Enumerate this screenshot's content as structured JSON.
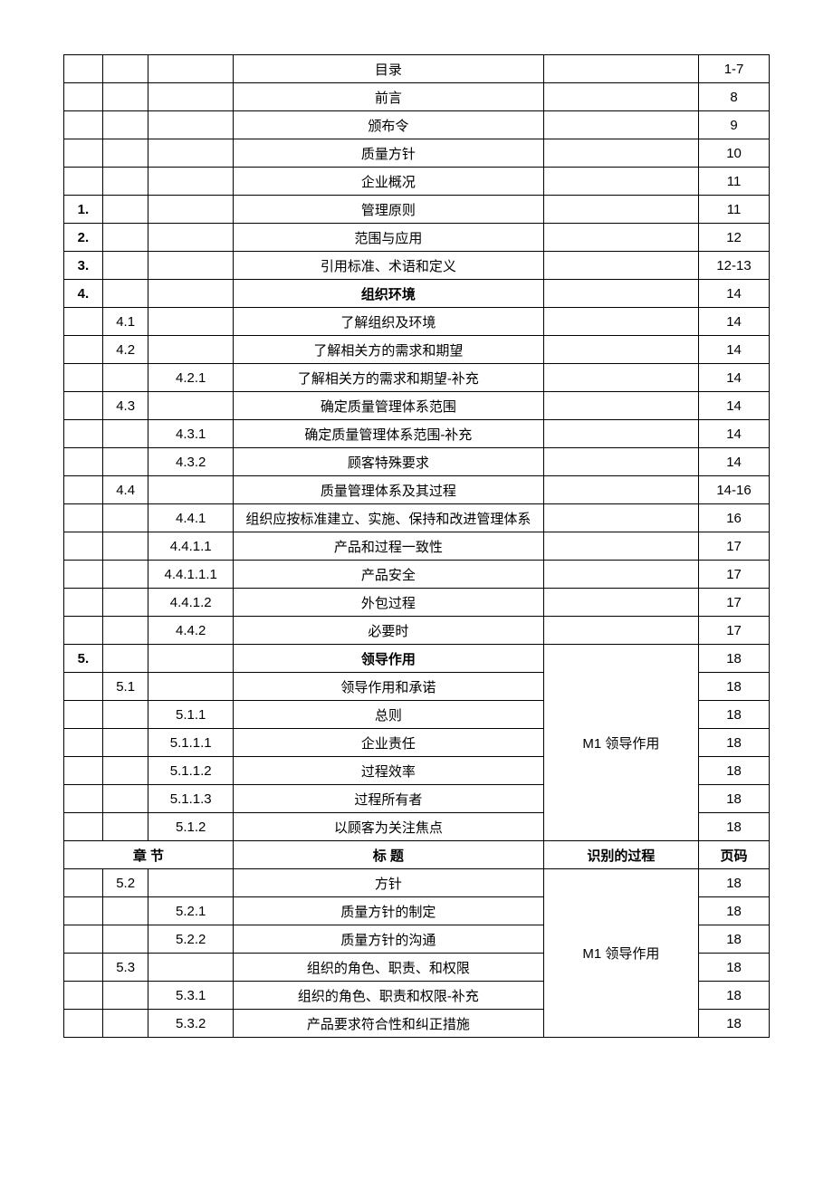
{
  "rows": [
    {
      "c1": "",
      "c2": "",
      "c3": "",
      "c4": "目录",
      "c5": "",
      "c6": "1-7",
      "bold4": false
    },
    {
      "c1": "",
      "c2": "",
      "c3": "",
      "c4": "前言",
      "c5": "",
      "c6": "8",
      "bold4": false
    },
    {
      "c1": "",
      "c2": "",
      "c3": "",
      "c4": "颁布令",
      "c5": "",
      "c6": "9",
      "bold4": false
    },
    {
      "c1": "",
      "c2": "",
      "c3": "",
      "c4": "质量方针",
      "c5": "",
      "c6": "10",
      "bold4": false
    },
    {
      "c1": "",
      "c2": "",
      "c3": "",
      "c4": "企业概况",
      "c5": "",
      "c6": "11",
      "bold4": false
    },
    {
      "c1": "1.",
      "c2": "",
      "c3": "",
      "c4": "管理原则",
      "c5": "",
      "c6": "11",
      "bold4": false
    },
    {
      "c1": "2.",
      "c2": "",
      "c3": "",
      "c4": "范围与应用",
      "c5": "",
      "c6": "12",
      "bold4": false
    },
    {
      "c1": "3.",
      "c2": "",
      "c3": "",
      "c4": "引用标准、术语和定义",
      "c5": "",
      "c6": "12-13",
      "bold4": false
    },
    {
      "c1": "4.",
      "c2": "",
      "c3": "",
      "c4": "组织环境",
      "c5": "",
      "c6": "14",
      "bold4": true
    },
    {
      "c1": "",
      "c2": "4.1",
      "c3": "",
      "c4": "了解组织及环境",
      "c5": "",
      "c6": "14",
      "bold4": false
    },
    {
      "c1": "",
      "c2": "4.2",
      "c3": "",
      "c4": "了解相关方的需求和期望",
      "c5": "",
      "c6": "14",
      "bold4": false
    },
    {
      "c1": "",
      "c2": "",
      "c3": "4.2.1",
      "c4": "了解相关方的需求和期望-补充",
      "c5": "",
      "c6": "14",
      "bold4": false
    },
    {
      "c1": "",
      "c2": "4.3",
      "c3": "",
      "c4": "确定质量管理体系范围",
      "c5": "",
      "c6": "14",
      "bold4": false
    },
    {
      "c1": "",
      "c2": "",
      "c3": "4.3.1",
      "c4": "确定质量管理体系范围-补充",
      "c5": "",
      "c6": "14",
      "bold4": false
    },
    {
      "c1": "",
      "c2": "",
      "c3": "4.3.2",
      "c4": "顾客特殊要求",
      "c5": "",
      "c6": "14",
      "bold4": false
    },
    {
      "c1": "",
      "c2": "4.4",
      "c3": "",
      "c4": "质量管理体系及其过程",
      "c5": "",
      "c6": "14-16",
      "bold4": false
    },
    {
      "c1": "",
      "c2": "",
      "c3": "4.4.1",
      "c4": "组织应按标准建立、实施、保持和改进管理体系",
      "c5": "",
      "c6": "16",
      "bold4": false
    },
    {
      "c1": "",
      "c2": "",
      "c3": "4.4.1.1",
      "c4": "产品和过程一致性",
      "c5": "",
      "c6": "17",
      "bold4": false
    },
    {
      "c1": "",
      "c2": "",
      "c3": "4.4.1.1.1",
      "c4": "产品安全",
      "c5": "",
      "c6": "17",
      "bold4": false
    },
    {
      "c1": "",
      "c2": "",
      "c3": "4.4.1.2",
      "c4": "外包过程",
      "c5": "",
      "c6": "17",
      "bold4": false
    },
    {
      "c1": "",
      "c2": "",
      "c3": "4.4.2",
      "c4": "必要时",
      "c5": "",
      "c6": "17",
      "bold4": false
    }
  ],
  "group1": {
    "label": "M1 领导作用",
    "rows": [
      {
        "c1": "5.",
        "c2": "",
        "c3": "",
        "c4": "领导作用",
        "c6": "18",
        "bold4": true
      },
      {
        "c1": "",
        "c2": "5.1",
        "c3": "",
        "c4": "领导作用和承诺",
        "c6": "18",
        "bold4": false
      },
      {
        "c1": "",
        "c2": "",
        "c3": "5.1.1",
        "c4": "总则",
        "c6": "18",
        "bold4": false
      },
      {
        "c1": "",
        "c2": "",
        "c3": "5.1.1.1",
        "c4": "企业责任",
        "c6": "18",
        "bold4": false
      },
      {
        "c1": "",
        "c2": "",
        "c3": "5.1.1.2",
        "c4": "过程效率",
        "c6": "18",
        "bold4": false
      },
      {
        "c1": "",
        "c2": "",
        "c3": "5.1.1.3",
        "c4": "过程所有者",
        "c6": "18",
        "bold4": false
      },
      {
        "c1": "",
        "c2": "",
        "c3": "5.1.2",
        "c4": "以顾客为关注焦点",
        "c6": "18",
        "bold4": false
      }
    ]
  },
  "header2": {
    "chapter": "章 节",
    "title": "标 题",
    "process": "识别的过程",
    "page": "页码"
  },
  "group2": {
    "label": "M1 领导作用",
    "rows": [
      {
        "c1": "",
        "c2": "5.2",
        "c3": "",
        "c4": "方针",
        "c6": "18",
        "bold4": false
      },
      {
        "c1": "",
        "c2": "",
        "c3": "5.2.1",
        "c4": "质量方针的制定",
        "c6": "18",
        "bold4": false
      },
      {
        "c1": "",
        "c2": "",
        "c3": "5.2.2",
        "c4": "质量方针的沟通",
        "c6": "18",
        "bold4": false
      },
      {
        "c1": "",
        "c2": "5.3",
        "c3": "",
        "c4": "组织的角色、职责、和权限",
        "c6": "18",
        "bold4": false
      },
      {
        "c1": "",
        "c2": "",
        "c3": "5.3.1",
        "c4": "组织的角色、职责和权限-补充",
        "c6": "18",
        "bold4": false
      },
      {
        "c1": "",
        "c2": "",
        "c3": "5.3.2",
        "c4": "产品要求符合性和纠正措施",
        "c6": "18",
        "bold4": false
      }
    ]
  }
}
